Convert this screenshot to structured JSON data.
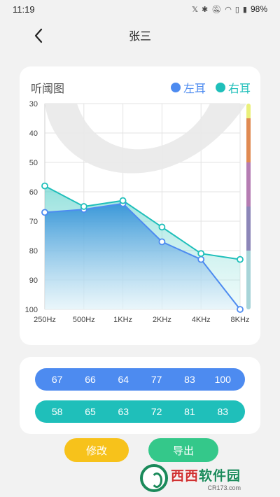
{
  "status_bar": {
    "time": "11:19",
    "battery": "98%"
  },
  "header": {
    "title": "张三",
    "back_icon": "chevron-left-icon"
  },
  "chart_card": {
    "title": "听阈图"
  },
  "colors": {
    "left_ear": "#4d8bf0",
    "right_ear": "#1fbfba",
    "edit_button": "#f7c21b",
    "export_button": "#34c88a"
  },
  "level_bar": {
    "segments": [
      {
        "color": "#eaf07a",
        "from": 30,
        "to": 35
      },
      {
        "color": "#e08a52",
        "from": 35,
        "to": 50
      },
      {
        "color": "#b57cb2",
        "from": 50,
        "to": 65
      },
      {
        "color": "#8c86b8",
        "from": 65,
        "to": 80
      },
      {
        "color": "#a8d4d8",
        "from": 80,
        "to": 100
      }
    ]
  },
  "chart_data": {
    "type": "area",
    "title": "听阈图",
    "categories": [
      "250Hz",
      "500Hz",
      "1KHz",
      "2KHz",
      "4KHz",
      "8KHz"
    ],
    "series": [
      {
        "name": "左耳",
        "color": "#4d8bf0",
        "values": [
          67,
          66,
          64,
          77,
          83,
          100
        ]
      },
      {
        "name": "右耳",
        "color": "#1fbfba",
        "values": [
          58,
          65,
          63,
          72,
          81,
          83
        ]
      }
    ],
    "y_ticks": [
      "30",
      "40",
      "50",
      "60",
      "70",
      "80",
      "90",
      "100"
    ],
    "ylim": [
      30,
      100
    ],
    "y_reversed": true,
    "grid": true,
    "legend": "top-right"
  },
  "values": {
    "left": [
      "67",
      "66",
      "64",
      "77",
      "83",
      "100"
    ],
    "right": [
      "58",
      "65",
      "63",
      "72",
      "81",
      "83"
    ]
  },
  "buttons": {
    "edit": "修改",
    "export": "导出"
  },
  "watermark": {
    "main_a": "西西",
    "main_b": "软件园",
    "sub": "CR173.com"
  }
}
